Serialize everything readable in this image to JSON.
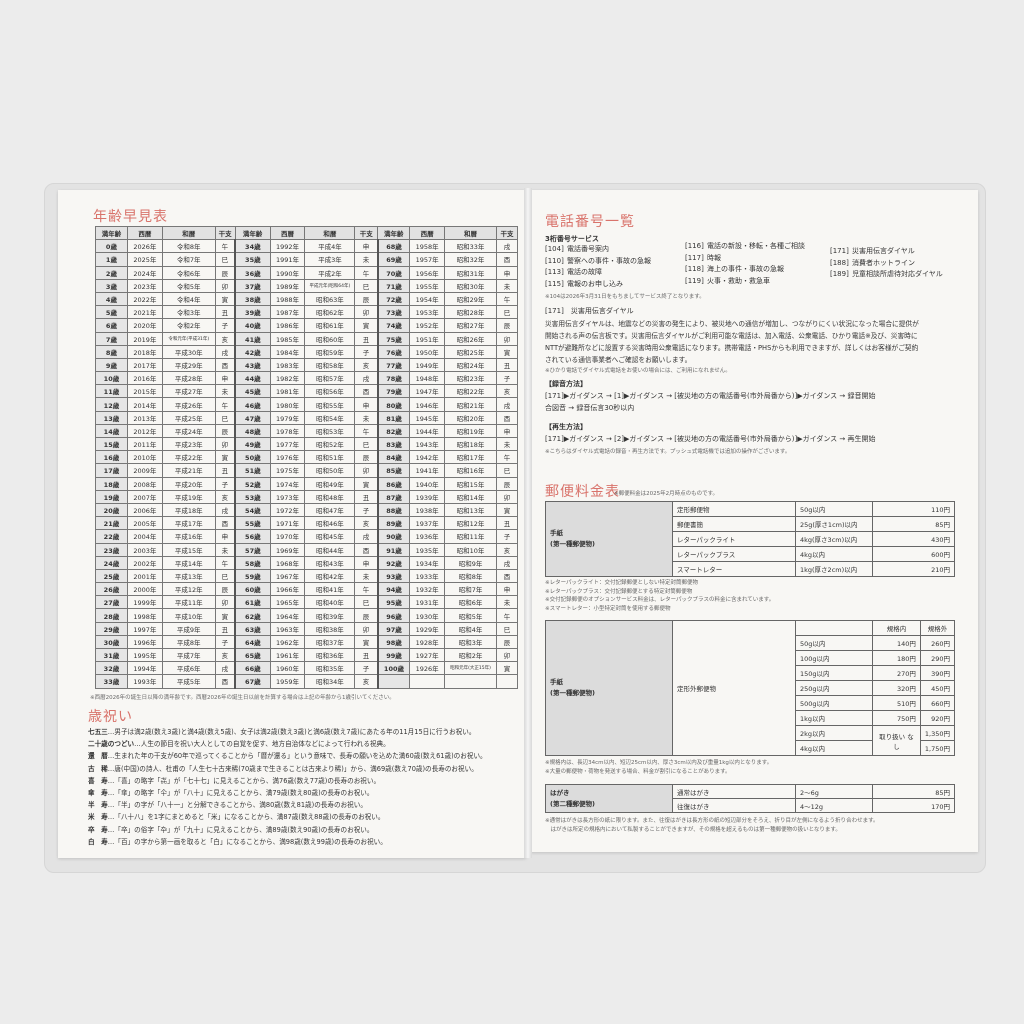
{
  "left": {
    "title": "年齢早見表",
    "table": {
      "headers": [
        "満年齢",
        "西暦",
        "和暦",
        "干支",
        "満年齢",
        "西暦",
        "和暦",
        "干支",
        "満年齢",
        "西暦",
        "和暦",
        "干支"
      ],
      "rows": [
        [
          "0歳",
          "2026年",
          "令和8年",
          "午",
          "34歳",
          "1992年",
          "平成4年",
          "申",
          "68歳",
          "1958年",
          "昭和33年",
          "戌"
        ],
        [
          "1歳",
          "2025年",
          "令和7年",
          "巳",
          "35歳",
          "1991年",
          "平成3年",
          "未",
          "69歳",
          "1957年",
          "昭和32年",
          "酉"
        ],
        [
          "2歳",
          "2024年",
          "令和6年",
          "辰",
          "36歳",
          "1990年",
          "平成2年",
          "午",
          "70歳",
          "1956年",
          "昭和31年",
          "申"
        ],
        [
          "3歳",
          "2023年",
          "令和5年",
          "卯",
          "37歳",
          "1989年",
          "平成元年(昭和64年)",
          "巳",
          "71歳",
          "1955年",
          "昭和30年",
          "未"
        ],
        [
          "4歳",
          "2022年",
          "令和4年",
          "寅",
          "38歳",
          "1988年",
          "昭和63年",
          "辰",
          "72歳",
          "1954年",
          "昭和29年",
          "午"
        ],
        [
          "5歳",
          "2021年",
          "令和3年",
          "丑",
          "39歳",
          "1987年",
          "昭和62年",
          "卯",
          "73歳",
          "1953年",
          "昭和28年",
          "巳"
        ],
        [
          "6歳",
          "2020年",
          "令和2年",
          "子",
          "40歳",
          "1986年",
          "昭和61年",
          "寅",
          "74歳",
          "1952年",
          "昭和27年",
          "辰"
        ],
        [
          "7歳",
          "2019年",
          "令和元年(平成31年)",
          "亥",
          "41歳",
          "1985年",
          "昭和60年",
          "丑",
          "75歳",
          "1951年",
          "昭和26年",
          "卯"
        ],
        [
          "8歳",
          "2018年",
          "平成30年",
          "戌",
          "42歳",
          "1984年",
          "昭和59年",
          "子",
          "76歳",
          "1950年",
          "昭和25年",
          "寅"
        ],
        [
          "9歳",
          "2017年",
          "平成29年",
          "酉",
          "43歳",
          "1983年",
          "昭和58年",
          "亥",
          "77歳",
          "1949年",
          "昭和24年",
          "丑"
        ],
        [
          "10歳",
          "2016年",
          "平成28年",
          "申",
          "44歳",
          "1982年",
          "昭和57年",
          "戌",
          "78歳",
          "1948年",
          "昭和23年",
          "子"
        ],
        [
          "11歳",
          "2015年",
          "平成27年",
          "未",
          "45歳",
          "1981年",
          "昭和56年",
          "酉",
          "79歳",
          "1947年",
          "昭和22年",
          "亥"
        ],
        [
          "12歳",
          "2014年",
          "平成26年",
          "午",
          "46歳",
          "1980年",
          "昭和55年",
          "申",
          "80歳",
          "1946年",
          "昭和21年",
          "戌"
        ],
        [
          "13歳",
          "2013年",
          "平成25年",
          "巳",
          "47歳",
          "1979年",
          "昭和54年",
          "未",
          "81歳",
          "1945年",
          "昭和20年",
          "酉"
        ],
        [
          "14歳",
          "2012年",
          "平成24年",
          "辰",
          "48歳",
          "1978年",
          "昭和53年",
          "午",
          "82歳",
          "1944年",
          "昭和19年",
          "申"
        ],
        [
          "15歳",
          "2011年",
          "平成23年",
          "卯",
          "49歳",
          "1977年",
          "昭和52年",
          "巳",
          "83歳",
          "1943年",
          "昭和18年",
          "未"
        ],
        [
          "16歳",
          "2010年",
          "平成22年",
          "寅",
          "50歳",
          "1976年",
          "昭和51年",
          "辰",
          "84歳",
          "1942年",
          "昭和17年",
          "午"
        ],
        [
          "17歳",
          "2009年",
          "平成21年",
          "丑",
          "51歳",
          "1975年",
          "昭和50年",
          "卯",
          "85歳",
          "1941年",
          "昭和16年",
          "巳"
        ],
        [
          "18歳",
          "2008年",
          "平成20年",
          "子",
          "52歳",
          "1974年",
          "昭和49年",
          "寅",
          "86歳",
          "1940年",
          "昭和15年",
          "辰"
        ],
        [
          "19歳",
          "2007年",
          "平成19年",
          "亥",
          "53歳",
          "1973年",
          "昭和48年",
          "丑",
          "87歳",
          "1939年",
          "昭和14年",
          "卯"
        ],
        [
          "20歳",
          "2006年",
          "平成18年",
          "戌",
          "54歳",
          "1972年",
          "昭和47年",
          "子",
          "88歳",
          "1938年",
          "昭和13年",
          "寅"
        ],
        [
          "21歳",
          "2005年",
          "平成17年",
          "酉",
          "55歳",
          "1971年",
          "昭和46年",
          "亥",
          "89歳",
          "1937年",
          "昭和12年",
          "丑"
        ],
        [
          "22歳",
          "2004年",
          "平成16年",
          "申",
          "56歳",
          "1970年",
          "昭和45年",
          "戌",
          "90歳",
          "1936年",
          "昭和11年",
          "子"
        ],
        [
          "23歳",
          "2003年",
          "平成15年",
          "未",
          "57歳",
          "1969年",
          "昭和44年",
          "酉",
          "91歳",
          "1935年",
          "昭和10年",
          "亥"
        ],
        [
          "24歳",
          "2002年",
          "平成14年",
          "午",
          "58歳",
          "1968年",
          "昭和43年",
          "申",
          "92歳",
          "1934年",
          "昭和9年",
          "戌"
        ],
        [
          "25歳",
          "2001年",
          "平成13年",
          "巳",
          "59歳",
          "1967年",
          "昭和42年",
          "未",
          "93歳",
          "1933年",
          "昭和8年",
          "酉"
        ],
        [
          "26歳",
          "2000年",
          "平成12年",
          "辰",
          "60歳",
          "1966年",
          "昭和41年",
          "午",
          "94歳",
          "1932年",
          "昭和7年",
          "申"
        ],
        [
          "27歳",
          "1999年",
          "平成11年",
          "卯",
          "61歳",
          "1965年",
          "昭和40年",
          "巳",
          "95歳",
          "1931年",
          "昭和6年",
          "未"
        ],
        [
          "28歳",
          "1998年",
          "平成10年",
          "寅",
          "62歳",
          "1964年",
          "昭和39年",
          "辰",
          "96歳",
          "1930年",
          "昭和5年",
          "午"
        ],
        [
          "29歳",
          "1997年",
          "平成9年",
          "丑",
          "63歳",
          "1963年",
          "昭和38年",
          "卯",
          "97歳",
          "1929年",
          "昭和4年",
          "巳"
        ],
        [
          "30歳",
          "1996年",
          "平成8年",
          "子",
          "64歳",
          "1962年",
          "昭和37年",
          "寅",
          "98歳",
          "1928年",
          "昭和3年",
          "辰"
        ],
        [
          "31歳",
          "1995年",
          "平成7年",
          "亥",
          "65歳",
          "1961年",
          "昭和36年",
          "丑",
          "99歳",
          "1927年",
          "昭和2年",
          "卯"
        ],
        [
          "32歳",
          "1994年",
          "平成6年",
          "戌",
          "66歳",
          "1960年",
          "昭和35年",
          "子",
          "100歳",
          "1926年",
          "昭和元年(大正15年)",
          "寅"
        ],
        [
          "33歳",
          "1993年",
          "平成5年",
          "酉",
          "67歳",
          "1959年",
          "昭和34年",
          "亥",
          "",
          "",
          "",
          ""
        ]
      ],
      "footnote": "※西暦2026年の誕生日以降の満年齢です。西暦2026年の誕生日以前を計算する場合は上記の年齢から1歳引いてください。"
    },
    "celebrations": {
      "title": "歳祝い",
      "items": [
        {
          "name": "七五三",
          "text": "…男子は満2歳(数え3歳)と満4歳(数え5歳)、女子は満2歳(数え3歳)と満6歳(数え7歳)にあたる年の11月15日に行うお祝い。"
        },
        {
          "name": "二十歳のつどい",
          "text": "…人生の節目を祝い大人としての自覚を促す、地方自治体などによって行われる祝典。"
        },
        {
          "name": "還　暦",
          "text": "…生まれた年の干支が60年で巡ってくることから「暦が還る」という意味で、長寿の願いを込めた満60歳(数え61歳)のお祝い。"
        },
        {
          "name": "古　稀",
          "text": "…唐(中国)の詩人、杜甫の「人生七十古来稀(70歳まで生きることは古来より稀)」から、満69歳(数え70歳)の長寿のお祝い。"
        },
        {
          "name": "喜　寿",
          "text": "…「喜」の略字「㐂」が「七十七」に見えることから、満76歳(数え77歳)の長寿のお祝い。"
        },
        {
          "name": "傘　寿",
          "text": "…「傘」の略字「仐」が「八十」に見えることから、満79歳(数え80歳)の長寿のお祝い。"
        },
        {
          "name": "半　寿",
          "text": "…「半」の字が「八十一」と分解できることから、満80歳(数え81歳)の長寿のお祝い。"
        },
        {
          "name": "米　寿",
          "text": "…「八十八」を1字にまとめると「米」になることから、満87歳(数え88歳)の長寿のお祝い。"
        },
        {
          "name": "卒　寿",
          "text": "…「卒」の俗字「卆」が「九十」に見えることから、満89歳(数え90歳)の長寿のお祝い。"
        },
        {
          "name": "白　寿",
          "text": "…「百」の字から第一画を取ると「白」になることから、満98歳(数え99歳)の長寿のお祝い。"
        }
      ]
    }
  },
  "right": {
    "phone": {
      "title": "電話番号一覧",
      "subtitle": "3桁番号サービス",
      "col1": [
        [
          "[104]",
          "電話番号案内"
        ],
        [
          "[110]",
          "警察への事件・事故の急報"
        ],
        [
          "[113]",
          "電話の故障"
        ],
        [
          "[115]",
          "電報のお申し込み"
        ]
      ],
      "col2": [
        [
          "[116]",
          "電話の新設・移転・各種ご相談"
        ],
        [
          "[117]",
          "時報"
        ],
        [
          "[118]",
          "海上の事件・事故の急報"
        ],
        [
          "[119]",
          "火事・救助・救急車"
        ]
      ],
      "col3": [
        [
          "[171]",
          "災害用伝言ダイヤル"
        ],
        [
          "[188]",
          "消費者ホットライン"
        ],
        [
          "[189]",
          "児童相談所虐待対応ダイヤル"
        ]
      ],
      "note": "※104は2026年3月31日をもちましてサービス終了となります。",
      "dial_heading": "[171]　災害用伝言ダイヤル",
      "dial_text": [
        "災害用伝言ダイヤルは、地震などの災害の発生により、被災地への通信が増加し、つながりにくい状況になった場合に提供が",
        "開始される声の伝言板です。災害用伝言ダイヤルがご利用可能な電話は、加入電話、公衆電話、ひかり電話※及び、災害時に",
        "NTTが避難所などに設置する災害時用公衆電話になります。携帯電話・PHSからも利用できますが、詳しくはお客様がご契約",
        "されている通信事業者へご確認をお願いします。"
      ],
      "dial_note": "※ひかり電話でダイヤル式電話をお使いの場合には、ご利用になれません。",
      "record_heading": "【録音方法】",
      "record_steps": [
        "[171]▶ガイダンス → [1]▶ガイダンス → [被災地の方の電話番号(市外局番から)]▶ガイダンス → 録音開始",
        "合図音 → 録音伝言30秒以内"
      ],
      "play_heading": "【再生方法】",
      "play_steps": [
        "[171]▶ガイダンス → [2]▶ガイダンス → [被災地の方の電話番号(市外局番から)]▶ガイダンス → 再生開始"
      ],
      "play_note": "※こちらはダイヤル式電話の録音・再生方法です。プッシュ式電話機では追加の操作がございます。"
    },
    "postal": {
      "title": "郵便料金表",
      "title_note": "※郵便料金は2025年2月時点のものです。",
      "letter_label": [
        "手紙",
        "(第一種郵便物)"
      ],
      "table1": [
        [
          "定形郵便物",
          "50g以内",
          "110円"
        ],
        [
          "郵便書簡",
          "25g(厚さ1cm)以内",
          "85円"
        ],
        [
          "レターパックライト",
          "4kg(厚さ3cm)以内",
          "430円"
        ],
        [
          "レターパックプラス",
          "4kg以内",
          "600円"
        ],
        [
          "スマートレター",
          "1kg(厚さ2cm)以内",
          "210円"
        ]
      ],
      "notes1": [
        "※レターパックライト：交付記録郵便としない特定封筒郵便物",
        "※レターパックプラス：交付記録郵便とする特定封筒郵便物",
        "※交付記録郵便のオプションサービス料金は、レターパックプラスの料金に含まれています。",
        "※スマートレター：小型特定封筒を使用する郵便物"
      ],
      "table2": {
        "type": "定形外郵便物",
        "headers": [
          "規格内",
          "規格外"
        ],
        "rows": [
          [
            "50g以内",
            "140円",
            "260円"
          ],
          [
            "100g以内",
            "180円",
            "290円"
          ],
          [
            "150g以内",
            "270円",
            "390円"
          ],
          [
            "250g以内",
            "320円",
            "450円"
          ],
          [
            "500g以内",
            "510円",
            "660円"
          ],
          [
            "1kg以内",
            "750円",
            "920円"
          ],
          [
            "2kg以内",
            "",
            "1,350円"
          ],
          [
            "4kg以内",
            "",
            "1,750円"
          ]
        ],
        "unavailable": "取り扱い なし"
      },
      "notes2": [
        "※規格内は、長辺34cm以内、短辺25cm以内、厚さ3cm以内及び重量1kg以内となります。",
        "※大量の郵便物・荷物を発送する場合、料金が割引になることがあります。"
      ],
      "postcard_label": [
        "はがき",
        "(第二種郵便物)"
      ],
      "table3": [
        [
          "通常はがき",
          "2〜6g",
          "85円"
        ],
        [
          "往復はがき",
          "4〜12g",
          "170円"
        ]
      ],
      "notes3": [
        "※通常はがきは長方形の紙に限ります。また、往復はがきは長方形の紙の短辺部分をそろえ、折り目が左側になるよう折り合わせます。",
        "　はがきは所定の規格内において私製することができますが、その規格を超えるものは第一種郵便物の扱いとなります。"
      ]
    }
  },
  "colors": {
    "accent": "#d9736b",
    "table_header": "#e2e2e2"
  }
}
